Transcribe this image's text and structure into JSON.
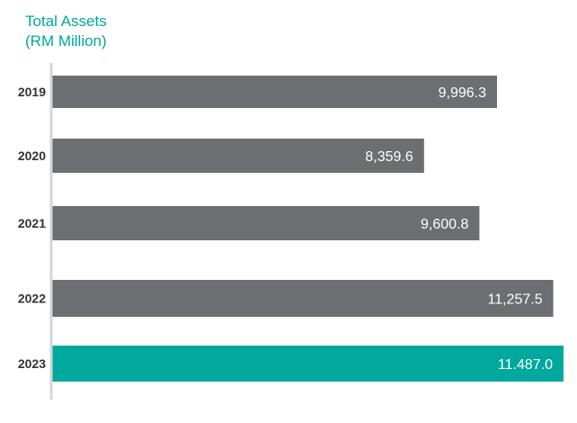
{
  "chart_data": {
    "type": "bar",
    "orientation": "horizontal",
    "title": "Total Assets",
    "subtitle": "(RM Million)",
    "categories": [
      "2019",
      "2020",
      "2021",
      "2022",
      "2023"
    ],
    "values": [
      9996.3,
      8359.6,
      9600.8,
      11257.5,
      11487.0
    ],
    "data_labels": [
      "9,996.3",
      "8,359.6",
      "9,600.8",
      "11,257.5",
      "11.487.0"
    ],
    "xlim": [
      0,
      11487.0
    ],
    "grid": false,
    "legend": "none"
  },
  "colors": {
    "bar_default": "#6d6e71",
    "bar_highlight": "#00a89d",
    "axis_line": "#d6d6d6",
    "title": "#00a89d",
    "category_label": "#333333",
    "value_label": "#ffffff"
  },
  "highlight_category": "2023"
}
